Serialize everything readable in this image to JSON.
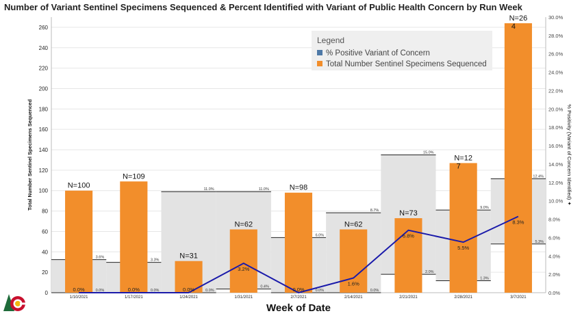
{
  "title": "Number of Variant Sentinel Specimens Sequenced & Percent Identified with Variant of Public Health Concern by Run Week",
  "chart_data": {
    "type": "bar",
    "title": "Number of Variant Sentinel Specimens Sequenced & Percent Identified with Variant of Public Health Concern by Run Week",
    "xlabel": "Week of Date",
    "ylabel": "Total Number Sentinel Specimens Sequenced",
    "y2label": "% Positivity (Variant of Concern Identified) ✦",
    "categories": [
      "1/10/2021",
      "1/17/2021",
      "1/24/2021",
      "1/31/2021",
      "2/7/2021",
      "2/14/2021",
      "2/21/2021",
      "2/28/2021",
      "3/7/2021"
    ],
    "ylim": [
      0,
      270
    ],
    "y2lim": [
      0,
      30
    ],
    "y_ticks": [
      0,
      20,
      40,
      60,
      80,
      100,
      120,
      140,
      160,
      180,
      200,
      220,
      240,
      260
    ],
    "y2_ticks": [
      "0.0%",
      "2.0%",
      "4.0%",
      "6.0%",
      "8.0%",
      "10.0%",
      "12.0%",
      "14.0%",
      "16.0%",
      "18.0%",
      "20.0%",
      "22.0%",
      "24.0%",
      "26.0%",
      "28.0%",
      "30.0%"
    ],
    "series": [
      {
        "name": "Total Number Sentinel Specimens Sequenced",
        "kind": "bar",
        "values": [
          100,
          109,
          31,
          62,
          98,
          62,
          73,
          127,
          264
        ],
        "labels": [
          [
            "N=100"
          ],
          [
            "N=109"
          ],
          [
            "N=31"
          ],
          [
            "N=62"
          ],
          [
            "N=98"
          ],
          [
            "N=62"
          ],
          [
            "N=73"
          ],
          [
            "N=12",
            "7"
          ],
          [
            "N=26",
            "4"
          ]
        ]
      },
      {
        "name": "% Positive Variant of Concern",
        "kind": "line",
        "values": [
          0.0,
          0.0,
          0.0,
          3.2,
          0.0,
          1.6,
          6.8,
          5.5,
          8.3
        ],
        "labels": [
          "0.0%",
          "0.0%",
          "0.0%",
          "3.2%",
          "0.0%",
          "1.6%",
          "6.8%",
          "5.5%",
          "8.3%"
        ]
      }
    ],
    "confidence_intervals": [
      {
        "upper": 3.6,
        "lower": 0.0,
        "upper_label": "3.6%",
        "lower_label": "0.0%"
      },
      {
        "upper": 3.3,
        "lower": 0.0,
        "upper_label": "3.3%",
        "lower_label": "0.0%"
      },
      {
        "upper": 11.0,
        "lower": 0.0,
        "upper_label": "11.0%",
        "lower_label": "0.0%"
      },
      {
        "upper": 11.0,
        "lower": 0.4,
        "upper_label": "11.0%",
        "lower_label": "0.4%"
      },
      {
        "upper": 6.0,
        "lower": 0.0,
        "upper_label": "6.0%",
        "lower_label": "0.0%"
      },
      {
        "upper": 8.7,
        "lower": 0.0,
        "upper_label": "8.7%",
        "lower_label": "0.0%"
      },
      {
        "upper": 15.0,
        "lower": 2.0,
        "upper_label": "15.0%",
        "lower_label": "2.0%"
      },
      {
        "upper": 9.0,
        "lower": 1.3,
        "upper_label": "9.0%",
        "lower_label": "1.3%"
      },
      {
        "upper": 12.4,
        "lower": 5.3,
        "upper_label": "12.4%",
        "lower_label": "5.3%"
      }
    ],
    "legend": {
      "title": "Legend",
      "position": "top-right",
      "items": [
        {
          "label": "% Positive Variant of Concern",
          "color": "#4e79a7"
        },
        {
          "label": "Total Number Sentinel Specimens Sequenced",
          "color": "#f28e2b"
        }
      ]
    },
    "colors": {
      "bar": "#f28e2b",
      "line": "#1a1aaa",
      "ci_band": "#e3e3e3",
      "ci_line": "#222222",
      "gridline": "#e6e6e6"
    },
    "grid": true
  },
  "logo": {
    "name": "colorado-logo"
  }
}
